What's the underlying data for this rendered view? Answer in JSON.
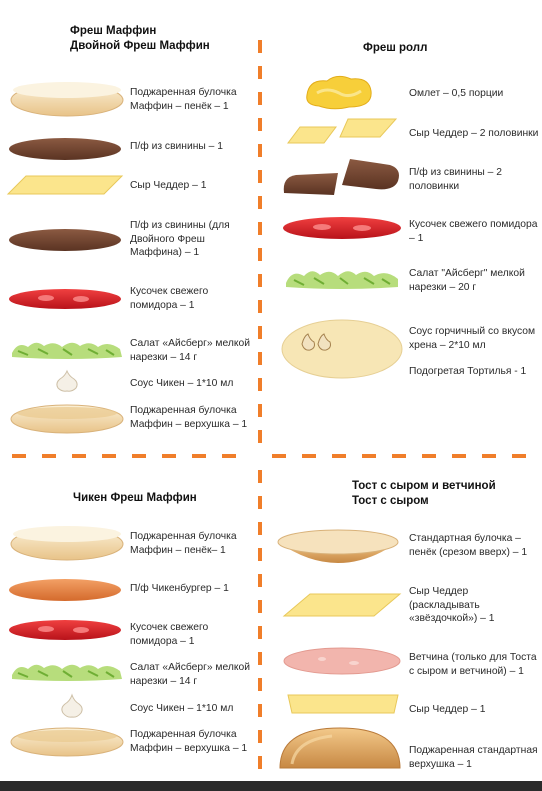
{
  "sections": {
    "fresh_muffin": {
      "title_1": "Фреш Маффин",
      "title_2": "Двойной Фреш Маффин",
      "items": [
        {
          "icon": "muffin-bottom",
          "label": "Поджаренная булочка Маффин – пенёк – 1"
        },
        {
          "icon": "pork-patty",
          "label": "П/ф из свинины – 1"
        },
        {
          "icon": "cheddar-slice",
          "label": "Сыр Чеддер – 1"
        },
        {
          "icon": "pork-patty",
          "label": "П/ф из свинины (для Двойного Фреш Маффина) – 1"
        },
        {
          "icon": "tomato-slice",
          "label": "Кусочек свежего помидора – 1"
        },
        {
          "icon": "lettuce",
          "label": "Салат «Айсберг» мелкой нарезки – 14 г"
        },
        {
          "icon": "sauce-dollop",
          "label": "Соус Чикен – 1*10 мл"
        },
        {
          "icon": "muffin-top",
          "label": "Поджаренная булочка Маффин – верхушка – 1"
        }
      ]
    },
    "fresh_roll": {
      "title": "Фреш ролл",
      "items": [
        {
          "icon": "omelet",
          "label": "Омлет – 0,5 порции"
        },
        {
          "icon": "cheddar-halves",
          "label": "Сыр Чеддер – 2 половинки"
        },
        {
          "icon": "pork-halves",
          "label": "П/ф из свинины – 2 половинки"
        },
        {
          "icon": "tomato-slice",
          "label": "Кусочек свежего помидора – 1"
        },
        {
          "icon": "lettuce",
          "label": "Салат \"Айсберг\" мелкой нарезки – 20 г"
        },
        {
          "icon": "tortilla-with-sauce",
          "label": "Соус горчичный со вкусом хрена – 2*10 мл"
        },
        {
          "icon": "none",
          "label": "Подогретая Тортилья - 1"
        }
      ]
    },
    "chicken_muffin": {
      "title": "Чикен Фреш Маффин",
      "items": [
        {
          "icon": "muffin-bottom",
          "label": "Поджаренная булочка Маффин – пенёк– 1"
        },
        {
          "icon": "chicken-patty",
          "label": "П/ф Чикенбургер – 1"
        },
        {
          "icon": "tomato-slice",
          "label": "Кусочек свежего помидора – 1"
        },
        {
          "icon": "lettuce",
          "label": "Салат «Айсберг» мелкой нарезки – 14 г"
        },
        {
          "icon": "sauce-dollop",
          "label": "Соус Чикен – 1*10 мл"
        },
        {
          "icon": "muffin-top",
          "label": "Поджаренная булочка Маффин – верхушка – 1"
        }
      ]
    },
    "toast": {
      "title_1": "Тост с сыром и ветчиной",
      "title_2": "Тост с сыром",
      "items": [
        {
          "icon": "bun-heel-up",
          "label": "Стандартная булочка – пенёк (срезом вверх) – 1"
        },
        {
          "icon": "cheddar-diamond",
          "label": "Сыр Чеддер (раскладывать «звёздочкой») – 1"
        },
        {
          "icon": "ham-slice",
          "label": "Ветчина (только для Тоста с сыром и ветчиной) – 1"
        },
        {
          "icon": "cheddar-slice",
          "label": "Сыр Чеддер – 1"
        },
        {
          "icon": "bun-crown",
          "label": "Поджаренная стандартная верхушка – 1"
        }
      ]
    }
  },
  "colors": {
    "divider": "#f07e2a",
    "bun": "#f3d9a8",
    "cheese": "#fbe58c",
    "meat": "#7a4a36",
    "tomato": "#e0242c",
    "lettuce": "#a9d46b",
    "chicken": "#e9874a",
    "ham": "#f2b5ad"
  }
}
